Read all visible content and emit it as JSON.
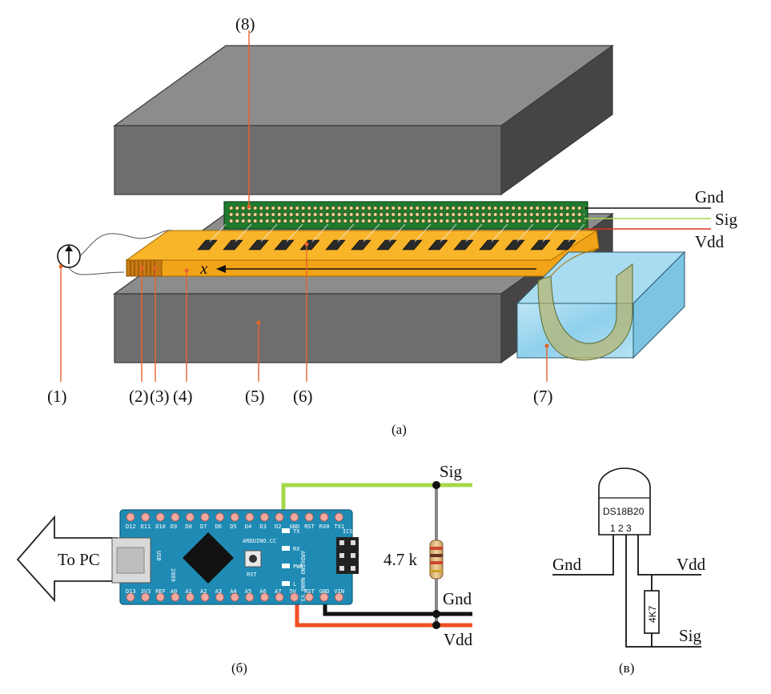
{
  "panel_a": {
    "caption": "(a)",
    "callouts": [
      "(1)",
      "(2)",
      "(3)",
      "(4)",
      "(5)",
      "(6)",
      "(7)",
      "(8)"
    ],
    "axis_label": "x",
    "wires": {
      "gnd": "Gnd",
      "sig": "Sig",
      "vdd": "Vdd"
    }
  },
  "panel_b": {
    "caption": "(б)",
    "pc_label": "To PC",
    "sig": "Sig",
    "resistor": "4.7 k",
    "gnd": "Gnd",
    "vdd": "Vdd",
    "board": {
      "top_pins": [
        "D12",
        "D11",
        "D10",
        "D9",
        "D8",
        "D7",
        "D6",
        "D5",
        "D4",
        "D3",
        "D2",
        "GND",
        "RST",
        "RX0",
        "TX1"
      ],
      "bottom_pins": [
        "D13",
        "3V3",
        "REF",
        "A0",
        "A1",
        "A2",
        "A3",
        "A4",
        "A5",
        "A6",
        "A7",
        "5V",
        "RST",
        "GND",
        "VIN"
      ],
      "usb": "USB",
      "year": "2009",
      "brand": "ARDUINO.CC",
      "model": "ARDUINO NANO V3.0",
      "rst": "RST",
      "icsp": "ICSP",
      "leds": [
        "TX",
        "RX",
        "PWR",
        "L"
      ]
    },
    "colors": {
      "sig": "#a6d84a",
      "gnd": "#111111",
      "vdd": "#f04e23",
      "board": "#1f8bb5"
    }
  },
  "panel_c": {
    "caption": "(в)",
    "chip": "DS18B20",
    "pins": "1 2 3",
    "resistor": "4K7",
    "gnd": "Gnd",
    "vdd": "Vdd",
    "sig": "Sig"
  }
}
